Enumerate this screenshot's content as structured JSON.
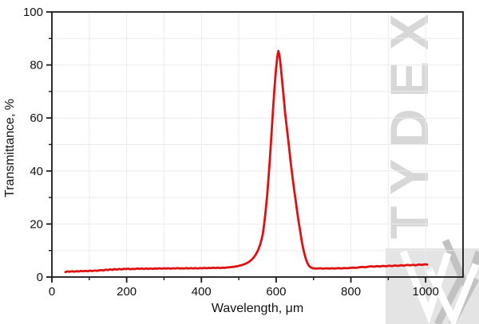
{
  "watermark": {
    "text": "TYDEX",
    "color": "#d7d7d7"
  },
  "logo": {
    "square_color": "#e4e4e4",
    "white_stroke": "#ffffff",
    "gray_stroke": "#c2c2c2"
  },
  "chart_data": {
    "type": "line",
    "title": "",
    "xlabel": "Wavelength, μm",
    "ylabel": "Transmittance, %",
    "xlim": [
      0,
      1100
    ],
    "ylim": [
      0,
      100
    ],
    "x_major_ticks": [
      0,
      200,
      400,
      600,
      800,
      1000
    ],
    "x_minor_ticks": [
      100,
      300,
      500,
      700,
      900
    ],
    "y_major_ticks": [
      0,
      20,
      40,
      60,
      80,
      100
    ],
    "y_minor_ticks": [
      10,
      30,
      50,
      70,
      90
    ],
    "grid": true,
    "grid_color": "#ebebeb",
    "axis_color": "#1a1a1a",
    "legend": "none",
    "series": {
      "color": "#e01010",
      "peak": {
        "x": 606,
        "y": 85.3
      },
      "points": [
        [
          36,
          1.9
        ],
        [
          42,
          2.1
        ],
        [
          48,
          2.0
        ],
        [
          54,
          2.2
        ],
        [
          60,
          2.05
        ],
        [
          66,
          2.2
        ],
        [
          72,
          2.1
        ],
        [
          78,
          2.3
        ],
        [
          84,
          2.15
        ],
        [
          90,
          2.3
        ],
        [
          96,
          2.2
        ],
        [
          102,
          2.4
        ],
        [
          108,
          2.25
        ],
        [
          114,
          2.45
        ],
        [
          120,
          2.3
        ],
        [
          126,
          2.5
        ],
        [
          132,
          2.6
        ],
        [
          138,
          2.45
        ],
        [
          144,
          2.8
        ],
        [
          150,
          2.6
        ],
        [
          156,
          2.9
        ],
        [
          162,
          2.7
        ],
        [
          168,
          3.0
        ],
        [
          174,
          2.8
        ],
        [
          180,
          3.05
        ],
        [
          186,
          2.85
        ],
        [
          192,
          3.1
        ],
        [
          198,
          3.0
        ],
        [
          204,
          3.15
        ],
        [
          210,
          2.95
        ],
        [
          216,
          3.1
        ],
        [
          222,
          3.0
        ],
        [
          228,
          3.2
        ],
        [
          234,
          3.05
        ],
        [
          240,
          3.2
        ],
        [
          246,
          3.1
        ],
        [
          252,
          3.25
        ],
        [
          258,
          3.1
        ],
        [
          264,
          3.2
        ],
        [
          270,
          3.1
        ],
        [
          276,
          3.25
        ],
        [
          282,
          3.15
        ],
        [
          288,
          3.3
        ],
        [
          294,
          3.15
        ],
        [
          300,
          3.3
        ],
        [
          306,
          3.2
        ],
        [
          312,
          3.3
        ],
        [
          318,
          3.15
        ],
        [
          324,
          3.3
        ],
        [
          330,
          3.2
        ],
        [
          336,
          3.35
        ],
        [
          342,
          3.2
        ],
        [
          348,
          3.3
        ],
        [
          354,
          3.2
        ],
        [
          360,
          3.35
        ],
        [
          366,
          3.25
        ],
        [
          372,
          3.35
        ],
        [
          378,
          3.2
        ],
        [
          384,
          3.35
        ],
        [
          390,
          3.25
        ],
        [
          396,
          3.4
        ],
        [
          402,
          3.3
        ],
        [
          408,
          3.45
        ],
        [
          414,
          3.3
        ],
        [
          420,
          3.45
        ],
        [
          426,
          3.35
        ],
        [
          432,
          3.5
        ],
        [
          438,
          3.4
        ],
        [
          444,
          3.5
        ],
        [
          450,
          3.4
        ],
        [
          456,
          3.55
        ],
        [
          462,
          3.45
        ],
        [
          468,
          3.6
        ],
        [
          474,
          3.65
        ],
        [
          480,
          3.75
        ],
        [
          486,
          3.85
        ],
        [
          492,
          4.0
        ],
        [
          498,
          4.15
        ],
        [
          504,
          4.35
        ],
        [
          510,
          4.6
        ],
        [
          516,
          4.9
        ],
        [
          522,
          5.3
        ],
        [
          528,
          5.8
        ],
        [
          534,
          6.5
        ],
        [
          540,
          7.4
        ],
        [
          546,
          8.6
        ],
        [
          552,
          10.2
        ],
        [
          558,
          12.5
        ],
        [
          564,
          16
        ],
        [
          568,
          20
        ],
        [
          572,
          25
        ],
        [
          576,
          31
        ],
        [
          580,
          38
        ],
        [
          584,
          46
        ],
        [
          588,
          55
        ],
        [
          592,
          64
        ],
        [
          596,
          72
        ],
        [
          600,
          79
        ],
        [
          603,
          83
        ],
        [
          606,
          85.3
        ],
        [
          609,
          83.5
        ],
        [
          612,
          80
        ],
        [
          616,
          74
        ],
        [
          620,
          68
        ],
        [
          624,
          62
        ],
        [
          628,
          57
        ],
        [
          632,
          52
        ],
        [
          636,
          47
        ],
        [
          640,
          42
        ],
        [
          644,
          37.5
        ],
        [
          648,
          33
        ],
        [
          652,
          29
        ],
        [
          656,
          25
        ],
        [
          660,
          21
        ],
        [
          664,
          17.5
        ],
        [
          668,
          14
        ],
        [
          672,
          11
        ],
        [
          676,
          8.6
        ],
        [
          680,
          6.6
        ],
        [
          684,
          5.2
        ],
        [
          688,
          4.2
        ],
        [
          692,
          3.7
        ],
        [
          696,
          3.4
        ],
        [
          702,
          3.25
        ],
        [
          710,
          3.2
        ],
        [
          718,
          3.3
        ],
        [
          726,
          3.15
        ],
        [
          734,
          3.3
        ],
        [
          742,
          3.2
        ],
        [
          750,
          3.3
        ],
        [
          758,
          3.2
        ],
        [
          766,
          3.35
        ],
        [
          774,
          3.25
        ],
        [
          782,
          3.4
        ],
        [
          790,
          3.3
        ],
        [
          798,
          3.45
        ],
        [
          806,
          3.55
        ],
        [
          814,
          3.45
        ],
        [
          822,
          3.65
        ],
        [
          830,
          3.8
        ],
        [
          838,
          3.65
        ],
        [
          846,
          3.9
        ],
        [
          854,
          4.05
        ],
        [
          862,
          3.9
        ],
        [
          870,
          4.1
        ],
        [
          878,
          3.95
        ],
        [
          886,
          4.2
        ],
        [
          894,
          4.05
        ],
        [
          902,
          4.25
        ],
        [
          910,
          4.1
        ],
        [
          918,
          4.35
        ],
        [
          926,
          4.2
        ],
        [
          934,
          4.45
        ],
        [
          942,
          4.3
        ],
        [
          950,
          4.55
        ],
        [
          958,
          4.4
        ],
        [
          966,
          4.6
        ],
        [
          974,
          4.45
        ],
        [
          982,
          4.7
        ],
        [
          990,
          4.55
        ],
        [
          998,
          4.8
        ],
        [
          1004,
          4.7
        ]
      ]
    }
  }
}
